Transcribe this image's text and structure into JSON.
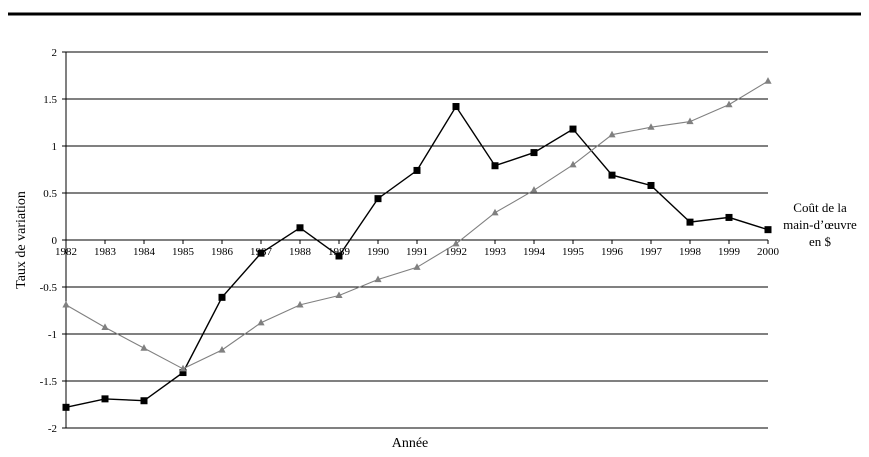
{
  "chart_data": {
    "type": "line",
    "xlabel": "Année",
    "ylabel": "Taux de variation",
    "ylim": [
      -2,
      2
    ],
    "yticks": [
      2,
      1.5,
      1,
      0.5,
      0,
      -0.5,
      -1,
      -1.5,
      -2
    ],
    "ytick_labels": [
      "2",
      "1.5",
      "1",
      "0.5",
      "0",
      "-0.5",
      "-1",
      "-1.5",
      "-2"
    ],
    "categories": [
      "1982",
      "1983",
      "1984",
      "1985",
      "1986",
      "1987",
      "1988",
      "1989",
      "1990",
      "1991",
      "1992",
      "1993",
      "1994",
      "1995",
      "1996",
      "1997",
      "1998",
      "1999",
      "2000"
    ],
    "grid": "horizontal",
    "series": [
      {
        "name": "Coût de la main-d’œuvre en $",
        "label_lines": [
          "Coût de la",
          "main-d’œuvre",
          "en $"
        ],
        "color": "#000000",
        "marker": "square",
        "values": [
          -1.78,
          -1.69,
          -1.71,
          -1.41,
          -0.61,
          -0.14,
          0.13,
          -0.17,
          0.44,
          0.74,
          1.42,
          0.79,
          0.93,
          1.18,
          0.69,
          0.58,
          0.19,
          0.24,
          0.11
        ]
      },
      {
        "color": "#808080",
        "marker": "triangle",
        "values": [
          -0.69,
          -0.93,
          -1.15,
          -1.37,
          -1.17,
          -0.88,
          -0.69,
          -0.59,
          -0.42,
          -0.29,
          -0.04,
          0.29,
          0.53,
          0.8,
          1.12,
          1.2,
          1.26,
          1.44,
          1.69
        ]
      }
    ]
  }
}
